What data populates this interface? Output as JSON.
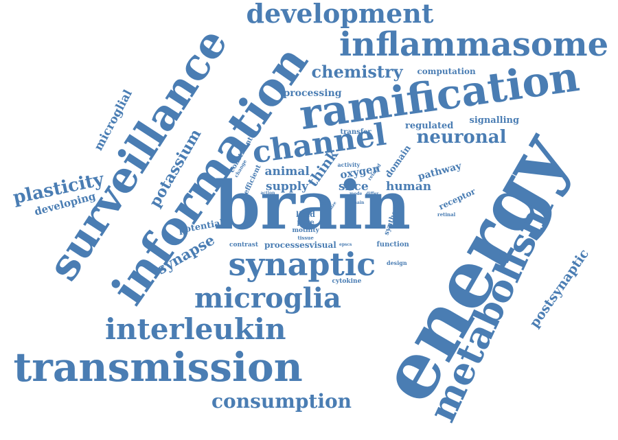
{
  "color": "#4a7db3",
  "words": [
    "energy",
    "brain",
    "information",
    "surveillance",
    "ramification",
    "metabolism",
    "transmission",
    "inflammasome",
    "development",
    "channel",
    "synaptic",
    "microglia",
    "interleukin",
    "consumption",
    "neuronal",
    "chemistry",
    "potassium",
    "plasticity",
    "microglial",
    "developing",
    "synapse",
    "postsynaptic",
    "processing",
    "computation",
    "regulated",
    "signalling",
    "transfer",
    "animal",
    "supply",
    "slice",
    "human",
    "oxygen",
    "pathway",
    "domain",
    "think",
    "processes",
    "visual",
    "function",
    "potential",
    "contrast",
    "cytokine",
    "receptor",
    "lipid",
    "pore",
    "motility",
    "tissue",
    "synthesis",
    "design",
    "retinal",
    "efficient",
    "constraint",
    "change",
    "action",
    "activity",
    "related",
    "mode",
    "differ",
    "main",
    "pfc",
    "size",
    "epscs"
  ]
}
